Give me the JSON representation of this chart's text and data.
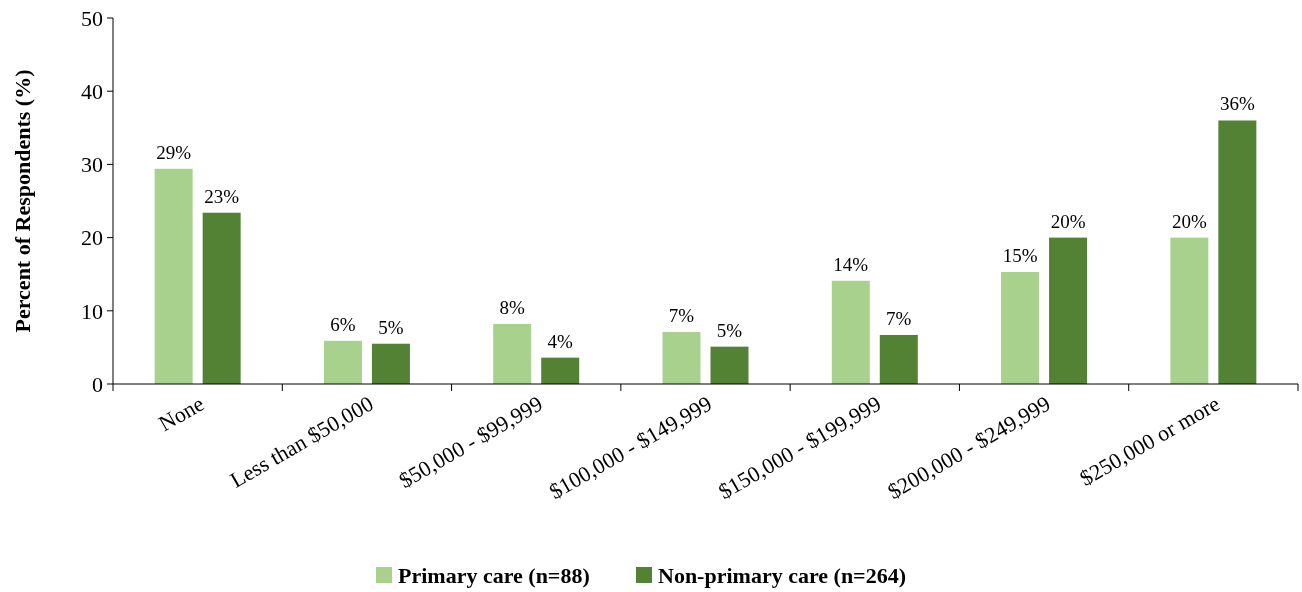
{
  "chart_data": {
    "type": "bar",
    "ylabel": "Percent of Respondents (%)",
    "categories": [
      "None",
      "Less than $50,000",
      "$50,000 - $99,999",
      "$100,000 - $149,999",
      "$150,000 - $199,999",
      "$200,000 - $249,999",
      "$250,000 or more"
    ],
    "series": [
      {
        "name": "Primary care (n=88)",
        "color": "#a9d18e",
        "values": [
          29.4,
          5.9,
          8.2,
          7.1,
          14.1,
          15.3,
          20.0
        ],
        "value_labels": [
          "29%",
          "6%",
          "8%",
          "7%",
          "14%",
          "15%",
          "20%"
        ]
      },
      {
        "name": "Non-primary care (n=264)",
        "color": "#548235",
        "values": [
          23.4,
          5.5,
          3.6,
          5.1,
          6.7,
          20.0,
          36.0
        ],
        "value_labels": [
          "23%",
          "5%",
          "4%",
          "5%",
          "7%",
          "20%",
          "36%"
        ]
      }
    ],
    "ylim": [
      0,
      50
    ],
    "yticks": [
      0,
      10,
      20,
      30,
      40,
      50
    ],
    "grid": false,
    "legend": "bottom"
  }
}
